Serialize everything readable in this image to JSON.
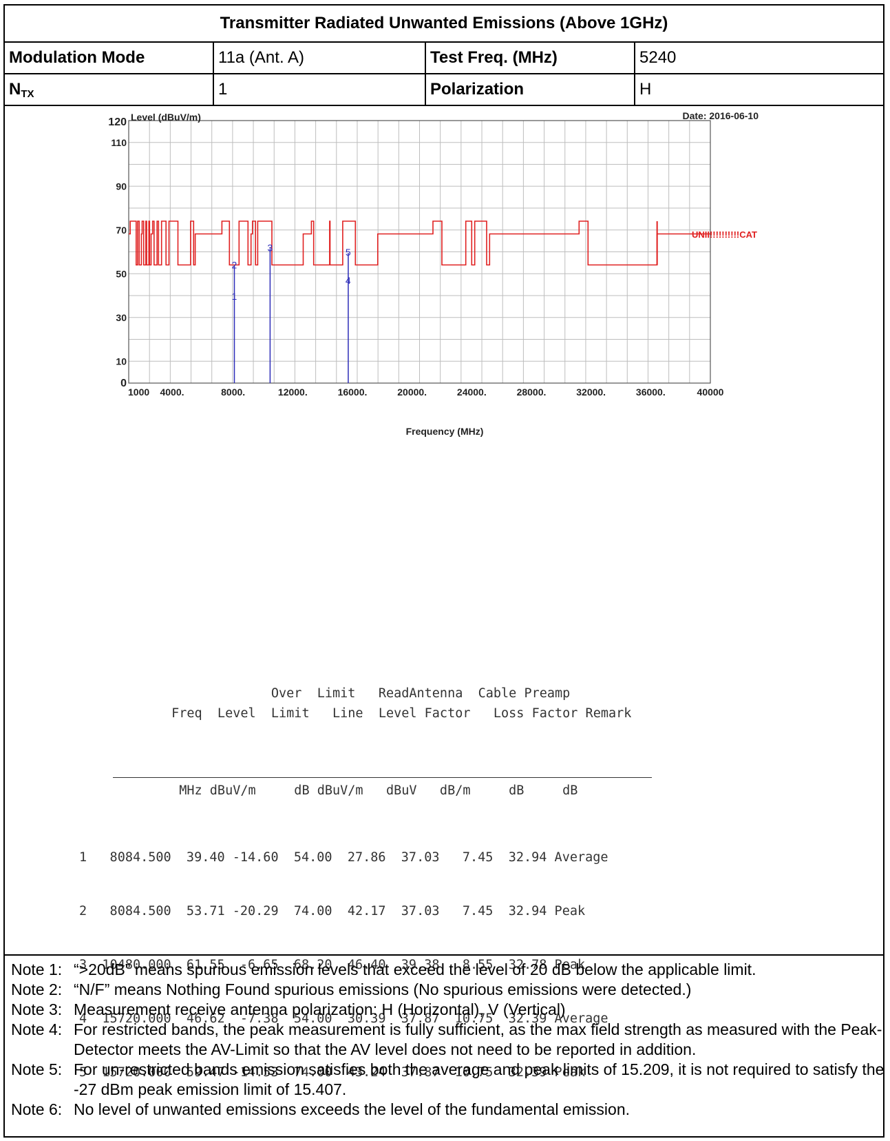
{
  "header": {
    "title": "Transmitter Radiated Unwanted Emissions (Above 1GHz)",
    "mod_label": "Modulation Mode",
    "mod_value": "11a (Ant. A)",
    "freq_label": "Test Freq. (MHz)",
    "freq_value": "5240",
    "ntx_label": "N",
    "ntx_sub": "TX",
    "ntx_value": "1",
    "pol_label": "Polarization",
    "pol_value": "H"
  },
  "chart_data": {
    "type": "line",
    "title": "",
    "ylabel": "Level (dBuV/m)",
    "xlabel": "Frequency (MHz)",
    "date": "Date: 2016-06-10",
    "xlim": [
      1000,
      40000
    ],
    "ylim": [
      0,
      120
    ],
    "x_ticks": [
      "1000",
      "4000.",
      "8000.",
      "12000.",
      "16000.",
      "20000.",
      "24000.",
      "28000.",
      "32000.",
      "36000.",
      "40000"
    ],
    "y_ticks": [
      "0",
      "10",
      "30",
      "50",
      "70",
      "90",
      "110",
      "120"
    ],
    "limit_label": "UNII!!!!!!!!!!CAT",
    "markers": [
      {
        "id": "1",
        "freq": 8084.5,
        "level": 39.4
      },
      {
        "id": "2",
        "freq": 8084.5,
        "level": 53.71
      },
      {
        "id": "3",
        "freq": 10480.0,
        "level": 61.55
      },
      {
        "id": "4",
        "freq": 15720.0,
        "level": 46.62
      },
      {
        "id": "5",
        "freq": 15720.0,
        "level": 59.47
      }
    ],
    "series": [
      {
        "name": "Limit",
        "color": "#e02020",
        "points": [
          [
            1000,
            68.2
          ],
          [
            1100,
            68.2
          ],
          [
            1100,
            74
          ],
          [
            1500,
            74
          ],
          [
            1500,
            54
          ],
          [
            1600,
            54
          ],
          [
            1600,
            74
          ],
          [
            1700,
            74
          ],
          [
            1700,
            54
          ],
          [
            1850,
            54
          ],
          [
            1850,
            68.2
          ],
          [
            1900,
            68.2
          ],
          [
            1900,
            74
          ],
          [
            2000,
            74
          ],
          [
            2000,
            54
          ],
          [
            2150,
            54
          ],
          [
            2150,
            74
          ],
          [
            2200,
            74
          ],
          [
            2200,
            54
          ],
          [
            2350,
            54
          ],
          [
            2350,
            74
          ],
          [
            2400,
            74
          ],
          [
            2400,
            54
          ],
          [
            2500,
            54
          ],
          [
            2500,
            68.2
          ],
          [
            2600,
            68.2
          ],
          [
            2600,
            74
          ],
          [
            2700,
            74
          ],
          [
            2700,
            54
          ],
          [
            2900,
            54
          ],
          [
            2900,
            74
          ],
          [
            3000,
            74
          ],
          [
            3000,
            54
          ],
          [
            3200,
            54
          ],
          [
            3200,
            74
          ],
          [
            3500,
            74
          ],
          [
            3500,
            54
          ],
          [
            3700,
            54
          ],
          [
            3700,
            74
          ],
          [
            4300,
            74
          ],
          [
            4300,
            54
          ],
          [
            5150,
            54
          ],
          [
            5150,
            74
          ],
          [
            5350,
            74
          ],
          [
            5350,
            54
          ],
          [
            5460,
            54
          ],
          [
            5460,
            68.2
          ],
          [
            7250,
            68.2
          ],
          [
            7250,
            74
          ],
          [
            7750,
            74
          ],
          [
            7750,
            54
          ],
          [
            8400,
            54
          ],
          [
            8400,
            74
          ],
          [
            9000,
            74
          ],
          [
            9000,
            54
          ],
          [
            9200,
            54
          ],
          [
            9200,
            68.2
          ],
          [
            9300,
            68.2
          ],
          [
            9300,
            74
          ],
          [
            9500,
            74
          ],
          [
            9500,
            54
          ],
          [
            9650,
            54
          ],
          [
            9650,
            74
          ],
          [
            10600,
            74
          ],
          [
            10600,
            54
          ],
          [
            12700,
            54
          ],
          [
            12700,
            68.2
          ],
          [
            13250,
            68.2
          ],
          [
            13250,
            74
          ],
          [
            13400,
            74
          ],
          [
            13400,
            54
          ],
          [
            14470,
            54
          ],
          [
            14470,
            74
          ],
          [
            14500,
            74
          ],
          [
            14500,
            54
          ],
          [
            15350,
            54
          ],
          [
            15350,
            74
          ],
          [
            16200,
            74
          ],
          [
            16200,
            54
          ],
          [
            17700,
            54
          ],
          [
            17700,
            68.2
          ],
          [
            21400,
            68.2
          ],
          [
            21400,
            74
          ],
          [
            22000,
            74
          ],
          [
            22000,
            54
          ],
          [
            23600,
            54
          ],
          [
            23600,
            74
          ],
          [
            24000,
            74
          ],
          [
            24000,
            54
          ],
          [
            24200,
            54
          ],
          [
            24200,
            74
          ],
          [
            25000,
            74
          ],
          [
            25000,
            54
          ],
          [
            25200,
            54
          ],
          [
            25200,
            68.2
          ],
          [
            31200,
            68.2
          ],
          [
            31200,
            74
          ],
          [
            31800,
            74
          ],
          [
            31800,
            54
          ],
          [
            36430,
            54
          ],
          [
            36430,
            68.2
          ],
          [
            40000,
            68.2
          ]
        ]
      }
    ]
  },
  "table": {
    "header_lines": [
      "                     Over  Limit   ReadAntenna  Cable Preamp",
      "        Freq  Level  Limit   Line  Level Factor   Loss Factor Remark"
    ],
    "units_line": "         MHz dBuV/m     dB dBuV/m   dBuV   dB/m     dB     dB",
    "rows": [
      "1   8084.500  39.40 -14.60  54.00  27.86  37.03   7.45  32.94 Average",
      "2   8084.500  53.71 -20.29  74.00  42.17  37.03   7.45  32.94 Peak",
      "3  10480.000  61.55  -6.65  68.20  46.40  39.38   8.55  32.78 Peak",
      "4  15720.000  46.62  -7.38  54.00  30.39  37.87  10.75  32.39 Average",
      "5  15720.000  59.47 -14.53  74.00  43.24  37.87  10.75  32.39 Peak"
    ]
  },
  "notes": [
    {
      "label": "Note 1:",
      "text": "“>20dB” means spurious emission levels that exceed the level of 20 dB below the applicable limit."
    },
    {
      "label": "Note 2:",
      "text": "“N/F” means Nothing Found spurious emissions (No spurious emissions were detected.)"
    },
    {
      "label": "Note 3:",
      "text": "Measurement receive antenna polarization: H (Horizontal), V (Vertical)"
    },
    {
      "label": "Note 4:",
      "text": "For restricted bands, the peak measurement is fully sufficient, as the max field strength as measured with the Peak-Detector meets the AV-Limit so that the AV level does not need to be reported in addition."
    },
    {
      "label": "Note 5:",
      "text": "For un-restricted bands emission satisfies both the average and peak limits of 15.209, it is not required to satisfy the -27 dBm peak emission limit of 15.407."
    },
    {
      "label": "Note 6:",
      "text": "No level of unwanted emissions exceeds the level of the fundamental emission."
    }
  ]
}
